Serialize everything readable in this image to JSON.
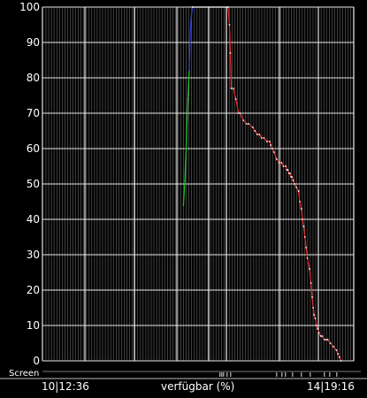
{
  "screen_label": "Screen",
  "bottom": {
    "start_time": "10|12:36",
    "axis_title": "verfügbar (%)",
    "end_time": "14|19:16"
  },
  "colors": {
    "background": "#000000",
    "grid": "#e6e6e6",
    "charging_green": "#22c02a",
    "charging_blue": "#2f3ed0",
    "full": "#ffffff",
    "discharging": "#e02a2a"
  },
  "chart_data": {
    "type": "line",
    "title": "",
    "xlabel": "verfügbar (%)",
    "ylabel": "",
    "x_start": "10|12:36",
    "x_end": "14|19:16",
    "xlim": [
      0,
      102.7
    ],
    "ylim": [
      0,
      100
    ],
    "yticks": [
      "0",
      "10",
      "20",
      "30",
      "40",
      "50",
      "60",
      "70",
      "80",
      "90",
      "100"
    ],
    "grid": true,
    "series": [
      {
        "color": "#22c02a",
        "x": [
          46.5,
          47.0,
          47.4,
          47.7,
          48.0,
          48.2,
          48.4
        ],
        "y": [
          44,
          51,
          60,
          68,
          74,
          78,
          82
        ]
      },
      {
        "color": "#2f3ed0",
        "x": [
          48.4,
          48.6,
          48.8,
          49.0,
          49.2,
          49.5
        ],
        "y": [
          82,
          88,
          93,
          96,
          98,
          100
        ]
      },
      {
        "color": "#ffffff",
        "x": [
          49.5,
          61.2
        ],
        "y": [
          100,
          100
        ]
      },
      {
        "color": "#e02a2a",
        "x": [
          61.2,
          61.7,
          62.0,
          62.3,
          63.0,
          63.8,
          64.7,
          65.2,
          66.3,
          67.3,
          68.0,
          69.4,
          70.1,
          70.9,
          71.6,
          72.3,
          73.1,
          74.1,
          75.0,
          75.3,
          75.8,
          76.4,
          77.3,
          78.1,
          78.9,
          79.5,
          80.3,
          80.6,
          80.9,
          81.3,
          81.7,
          82.0,
          82.3,
          82.7,
          83.2,
          83.8,
          84.5,
          84.9,
          85.4,
          85.8,
          86.2,
          86.6,
          87.0,
          87.4,
          88.1,
          88.6,
          89.0,
          89.3,
          89.6,
          90.0,
          90.4,
          90.8,
          91.2,
          91.8,
          92.3,
          93.0,
          93.6,
          94.1,
          95.0,
          96.0,
          97.0,
          97.5,
          98.0,
          98.5
        ],
        "y": [
          100,
          95,
          87,
          77,
          77,
          74,
          70,
          70,
          68,
          67,
          67,
          66,
          65,
          64,
          64,
          63,
          63,
          62,
          62,
          61,
          60,
          59,
          57,
          56,
          56,
          55,
          55,
          54,
          54,
          53,
          53,
          52,
          52,
          51,
          50,
          49,
          48,
          45,
          43,
          40,
          38,
          35,
          32,
          29,
          26,
          22,
          18,
          15,
          13,
          12,
          10,
          9,
          8,
          7,
          7,
          6,
          6,
          6,
          5,
          4,
          3,
          2,
          1,
          0
        ]
      }
    ]
  }
}
